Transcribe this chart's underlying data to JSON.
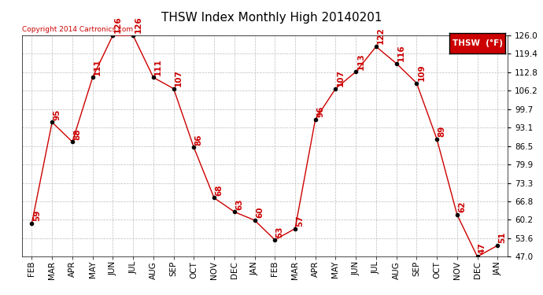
{
  "title": "THSW Index Monthly High 20140201",
  "copyright": "Copyright 2014 Cartronics.com",
  "legend_label": "THSW  (°F)",
  "months": [
    "FEB",
    "MAR",
    "APR",
    "MAY",
    "JUN",
    "JUL",
    "AUG",
    "SEP",
    "OCT",
    "NOV",
    "DEC",
    "JAN",
    "FEB",
    "MAR",
    "APR",
    "MAY",
    "JUN",
    "JUL",
    "AUG",
    "SEP",
    "OCT",
    "NOV",
    "DEC",
    "JAN"
  ],
  "values": [
    59,
    95,
    88,
    111,
    126,
    126,
    111,
    107,
    86,
    68,
    63,
    60,
    53,
    57,
    96,
    107,
    113,
    122,
    116,
    109,
    89,
    62,
    47,
    51
  ],
  "ylim_min": 47.0,
  "ylim_max": 126.0,
  "yticks": [
    47.0,
    53.6,
    60.2,
    66.8,
    73.3,
    79.9,
    86.5,
    93.1,
    99.7,
    106.2,
    112.8,
    119.4,
    126.0
  ],
  "ytick_labels": [
    "47.0",
    "53.6",
    "60.2",
    "66.8",
    "73.3",
    "79.9",
    "86.5",
    "93.1",
    "99.7",
    "106.2",
    "112.8",
    "119.4",
    "126.0"
  ],
  "line_color": "#cc0000",
  "marker_color": "#000000",
  "label_color": "#cc0000",
  "bg_color": "#ffffff",
  "grid_color": "#bbbbbb",
  "title_color": "#000000",
  "copyright_color": "#cc0000",
  "legend_bg": "#cc0000",
  "legend_text_color": "#ffffff",
  "title_fontsize": 11,
  "tick_fontsize": 7.5,
  "label_fontsize": 7.5,
  "copyright_fontsize": 6.5
}
